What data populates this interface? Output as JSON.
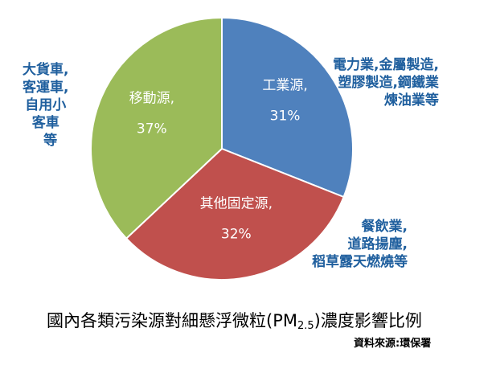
{
  "chart_data": {
    "type": "pie",
    "start_angle_deg": 0,
    "direction": "clockwise",
    "slices": [
      {
        "name": "工業源,",
        "value": 31,
        "label": "31%",
        "color": "#4f81bd"
      },
      {
        "name": "其他固定源,",
        "value": 32,
        "label": "32%",
        "color": "#c0504d"
      },
      {
        "name": "移動源,",
        "value": 37,
        "label": "37%",
        "color": "#9bbb59"
      }
    ]
  },
  "annotations": {
    "mobile": "大貨車,\n客運車,\n自用小\n客車\n  等",
    "industrial": "電力業,金屬製造,\n塑膠製造,鋼鐵業\n煉油業等",
    "other_fixed": "餐飲業,\n道路揚塵,\n稻草露天燃燒等"
  },
  "caption": {
    "prefix": "國內各類污染源對細懸浮微粒(PM",
    "subscript": "2.5",
    "suffix": ")濃度影響比例"
  },
  "source": "資料來源:環保署"
}
